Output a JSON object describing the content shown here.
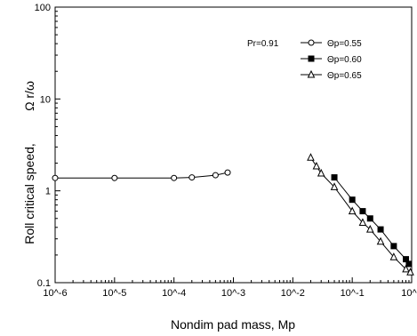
{
  "chart_data": {
    "type": "line",
    "title": "",
    "xlabel": "Nondim pad mass, Mp",
    "ylabel": "Roll critical speed,",
    "ylabel_symbol": "Ω r/ω",
    "xscale": "log",
    "yscale": "log",
    "xlim": [
      1e-06,
      1
    ],
    "ylim": [
      0.1,
      100
    ],
    "x_ticks": [
      {
        "value": 1e-06,
        "label": "10^-6"
      },
      {
        "value": 1e-05,
        "label": "10^-5"
      },
      {
        "value": 0.0001,
        "label": "10^-4"
      },
      {
        "value": 0.001,
        "label": "10^-3"
      },
      {
        "value": 0.01,
        "label": "10^-2"
      },
      {
        "value": 0.1,
        "label": "10^-1"
      },
      {
        "value": 1,
        "label": "10^0"
      }
    ],
    "y_ticks": [
      {
        "value": 0.1,
        "label": "0.1"
      },
      {
        "value": 1,
        "label": "1"
      },
      {
        "value": 10,
        "label": "10"
      },
      {
        "value": 100,
        "label": "100"
      }
    ],
    "grid": false,
    "legend_position": "top-right",
    "annotation": "Pr=0.91",
    "series": [
      {
        "name": "Θp=0.55",
        "marker": "circle-open",
        "color": "#000000",
        "x": [
          1e-06,
          1e-05,
          0.0001,
          0.0002,
          0.0005,
          0.0008
        ],
        "y": [
          1.38,
          1.38,
          1.38,
          1.4,
          1.48,
          1.58
        ]
      },
      {
        "name": "Θp=0.60",
        "marker": "square-filled",
        "color": "#000000",
        "x": [
          0.05,
          0.1,
          0.15,
          0.2,
          0.3,
          0.5,
          0.8,
          0.9
        ],
        "y": [
          1.4,
          0.8,
          0.6,
          0.5,
          0.38,
          0.25,
          0.18,
          0.16
        ]
      },
      {
        "name": "Θp=0.65",
        "marker": "triangle-open",
        "color": "#000000",
        "x": [
          0.02,
          0.025,
          0.03,
          0.05,
          0.1,
          0.15,
          0.2,
          0.3,
          0.5,
          0.8,
          0.95
        ],
        "y": [
          2.3,
          1.85,
          1.55,
          1.1,
          0.6,
          0.45,
          0.38,
          0.28,
          0.19,
          0.14,
          0.13
        ]
      }
    ]
  }
}
